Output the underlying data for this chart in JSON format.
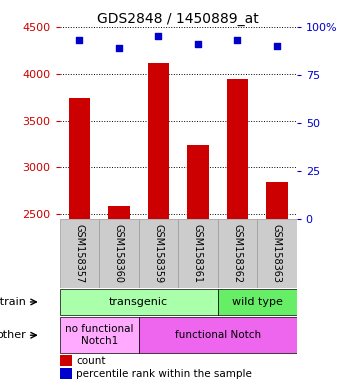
{
  "title": "GDS2848 / 1450889_at",
  "samples": [
    "GSM158357",
    "GSM158360",
    "GSM158359",
    "GSM158361",
    "GSM158362",
    "GSM158363"
  ],
  "counts": [
    3740,
    2590,
    4110,
    3240,
    3940,
    2840
  ],
  "percentiles": [
    93,
    89,
    95,
    91,
    93,
    90
  ],
  "ylim_left": [
    2450,
    4500
  ],
  "ylim_right": [
    0,
    100
  ],
  "yticks_left": [
    2500,
    3000,
    3500,
    4000,
    4500
  ],
  "yticks_right": [
    0,
    25,
    50,
    75,
    100
  ],
  "bar_color": "#cc0000",
  "dot_color": "#0000cc",
  "bar_width": 0.55,
  "strain_labels": [
    {
      "text": "transgenic",
      "start": 0,
      "end": 3,
      "color": "#aaffaa"
    },
    {
      "text": "wild type",
      "start": 4,
      "end": 5,
      "color": "#66ee66"
    }
  ],
  "other_labels": [
    {
      "text": "no functional\nNotch1",
      "start": 0,
      "end": 1,
      "color": "#ffaaff"
    },
    {
      "text": "functional Notch",
      "start": 2,
      "end": 5,
      "color": "#ee66ee"
    }
  ],
  "strain_row_label": "strain",
  "other_row_label": "other",
  "legend_count_label": "count",
  "legend_pct_label": "percentile rank within the sample",
  "tick_label_color_left": "#cc0000",
  "tick_label_color_right": "#0000cc",
  "background_color": "#ffffff",
  "cell_bg_color": "#cccccc",
  "grid_color": "#000000"
}
